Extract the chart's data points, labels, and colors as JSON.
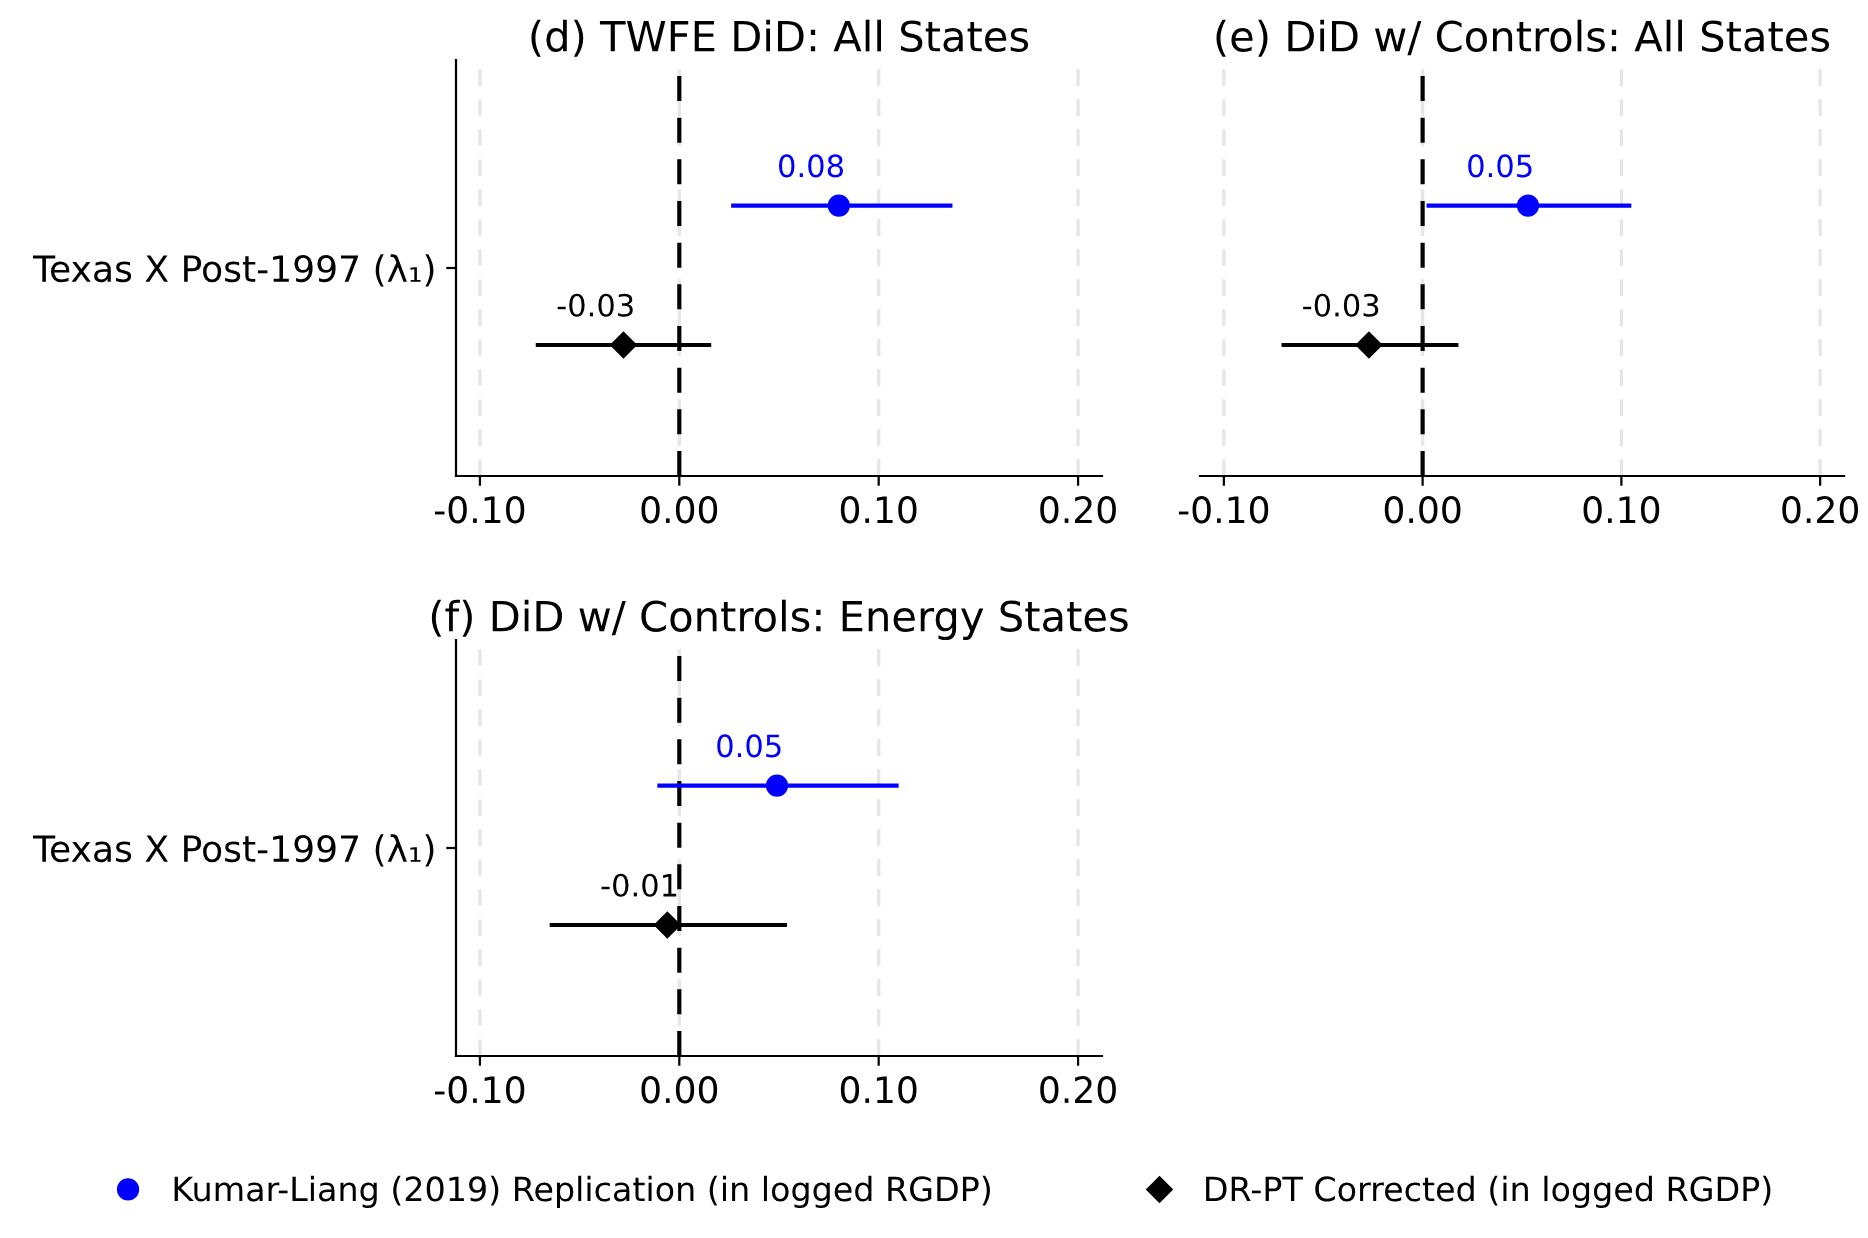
{
  "chart_data": [
    {
      "type": "scatter",
      "orientation": "horizontal",
      "title": "(d) TWFE DiD: All States",
      "categories": [
        "Texas X Post-1997 (λ₁)"
      ],
      "series": [
        {
          "name": "Kumar-Liang (2019) Replication (in logged RGDP)",
          "color": "#0000ff",
          "marker": "circle",
          "values": [
            0.08
          ],
          "errors": [
            [
              0.026,
              0.137
            ]
          ],
          "value_labels": [
            "0.08"
          ]
        },
        {
          "name": "DR-PT Corrected (in logged RGDP)",
          "color": "#000000",
          "marker": "diamond",
          "values": [
            -0.028
          ],
          "errors": [
            [
              -0.072,
              0.016
            ]
          ],
          "value_labels": [
            "-0.03"
          ]
        }
      ],
      "xlim": [
        -0.112,
        0.212
      ],
      "xticks": [
        {
          "value": -0.1,
          "label": "-0.10"
        },
        {
          "value": 0,
          "label": "0.00"
        },
        {
          "value": 0.1,
          "label": "0.10"
        },
        {
          "value": 0.2,
          "label": "0.20"
        }
      ],
      "grid": "x",
      "ref_lines": [
        {
          "axis": "x",
          "value": 0,
          "color": "#000000",
          "line_style": "dashed"
        }
      ],
      "legend": "bottom"
    },
    {
      "type": "scatter",
      "orientation": "horizontal",
      "title": "(e) DiD w/ Controls: All States",
      "categories": [
        null
      ],
      "series": [
        {
          "color": "#0000ff",
          "marker": "circle",
          "values": [
            0.053
          ],
          "errors": [
            [
              0.002,
              0.105
            ]
          ],
          "value_labels": [
            "0.05"
          ]
        },
        {
          "color": "#000000",
          "marker": "diamond",
          "values": [
            -0.027
          ],
          "errors": [
            [
              -0.071,
              0.018
            ]
          ],
          "value_labels": [
            "-0.03"
          ]
        }
      ],
      "xlim": [
        -0.112,
        0.212
      ],
      "xticks": [
        {
          "value": -0.1,
          "label": "-0.10"
        },
        {
          "value": 0,
          "label": "0.00"
        },
        {
          "value": 0.1,
          "label": "0.10"
        },
        {
          "value": 0.2,
          "label": "0.20"
        }
      ],
      "grid": "x",
      "ref_lines": [
        {
          "axis": "x",
          "value": 0,
          "color": "#000000",
          "line_style": "dashed"
        }
      ],
      "tick_labels": "x"
    },
    {
      "type": "scatter",
      "orientation": "horizontal",
      "title": "(f) DiD w/ Controls: Energy States",
      "categories": [
        "Texas X Post-1997 (λ₁)"
      ],
      "series": [
        {
          "color": "#0000ff",
          "marker": "circle",
          "values": [
            0.049
          ],
          "errors": [
            [
              -0.011,
              0.11
            ]
          ],
          "value_labels": [
            "0.05"
          ]
        },
        {
          "color": "#000000",
          "marker": "diamond",
          "values": [
            -0.006
          ],
          "errors": [
            [
              -0.065,
              0.054
            ]
          ],
          "value_labels": [
            "-0.01"
          ]
        }
      ],
      "xlim": [
        -0.112,
        0.212
      ],
      "xticks": [
        {
          "value": -0.1,
          "label": "-0.10"
        },
        {
          "value": 0,
          "label": "0.00"
        },
        {
          "value": 0.1,
          "label": "0.10"
        },
        {
          "value": 0.2,
          "label": "0.20"
        }
      ],
      "grid": "x",
      "ref_lines": [
        {
          "axis": "x",
          "value": 0,
          "color": "#000000",
          "line_style": "dashed"
        }
      ]
    }
  ]
}
